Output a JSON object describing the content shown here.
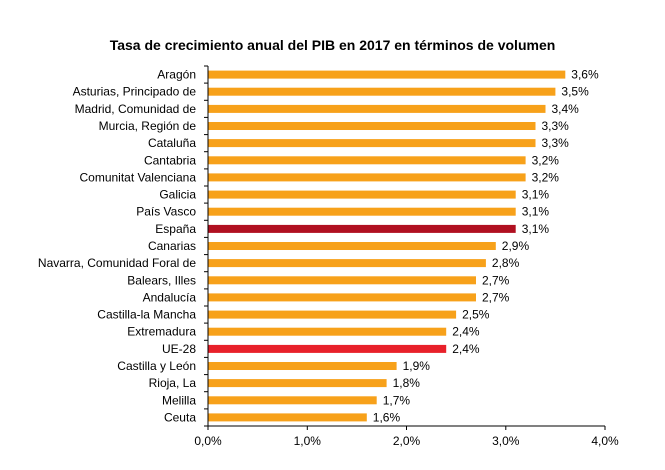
{
  "chart_data": {
    "type": "bar",
    "orientation": "horizontal",
    "title": "Tasa de crecimiento anual del PIB en 2017 en términos de volumen",
    "xlabel": "",
    "ylabel": "",
    "xlim": [
      0,
      4.0
    ],
    "x_ticks": [
      "0,0%",
      "1,0%",
      "2,0%",
      "3,0%",
      "4,0%"
    ],
    "grid": false,
    "legend": "none",
    "categories": [
      "Aragón",
      "Asturias, Principado de",
      "Madrid, Comunidad de",
      "Murcia, Región de",
      "Cataluña",
      "Cantabria",
      "Comunitat Valenciana",
      "Galicia",
      "País Vasco",
      "España",
      "Canarias",
      "Navarra, Comunidad Foral de",
      "Balears, Illes",
      "Andalucía",
      "Castilla-la Mancha",
      "Extremadura",
      "UE-28",
      "Castilla y León",
      "Rioja, La",
      "Melilla",
      "Ceuta"
    ],
    "values": [
      3.6,
      3.5,
      3.4,
      3.3,
      3.3,
      3.2,
      3.2,
      3.1,
      3.1,
      3.1,
      2.9,
      2.8,
      2.7,
      2.7,
      2.5,
      2.4,
      2.4,
      1.9,
      1.8,
      1.7,
      1.6
    ],
    "value_labels": [
      "3,6%",
      "3,5%",
      "3,4%",
      "3,3%",
      "3,3%",
      "3,2%",
      "3,2%",
      "3,1%",
      "3,1%",
      "3,1%",
      "2,9%",
      "2,8%",
      "2,7%",
      "2,7%",
      "2,5%",
      "2,4%",
      "2,4%",
      "1,9%",
      "1,8%",
      "1,7%",
      "1,6%"
    ],
    "colors": {
      "default": "#F7A11A",
      "España": "#B01020",
      "UE-28": "#E8202A"
    }
  }
}
